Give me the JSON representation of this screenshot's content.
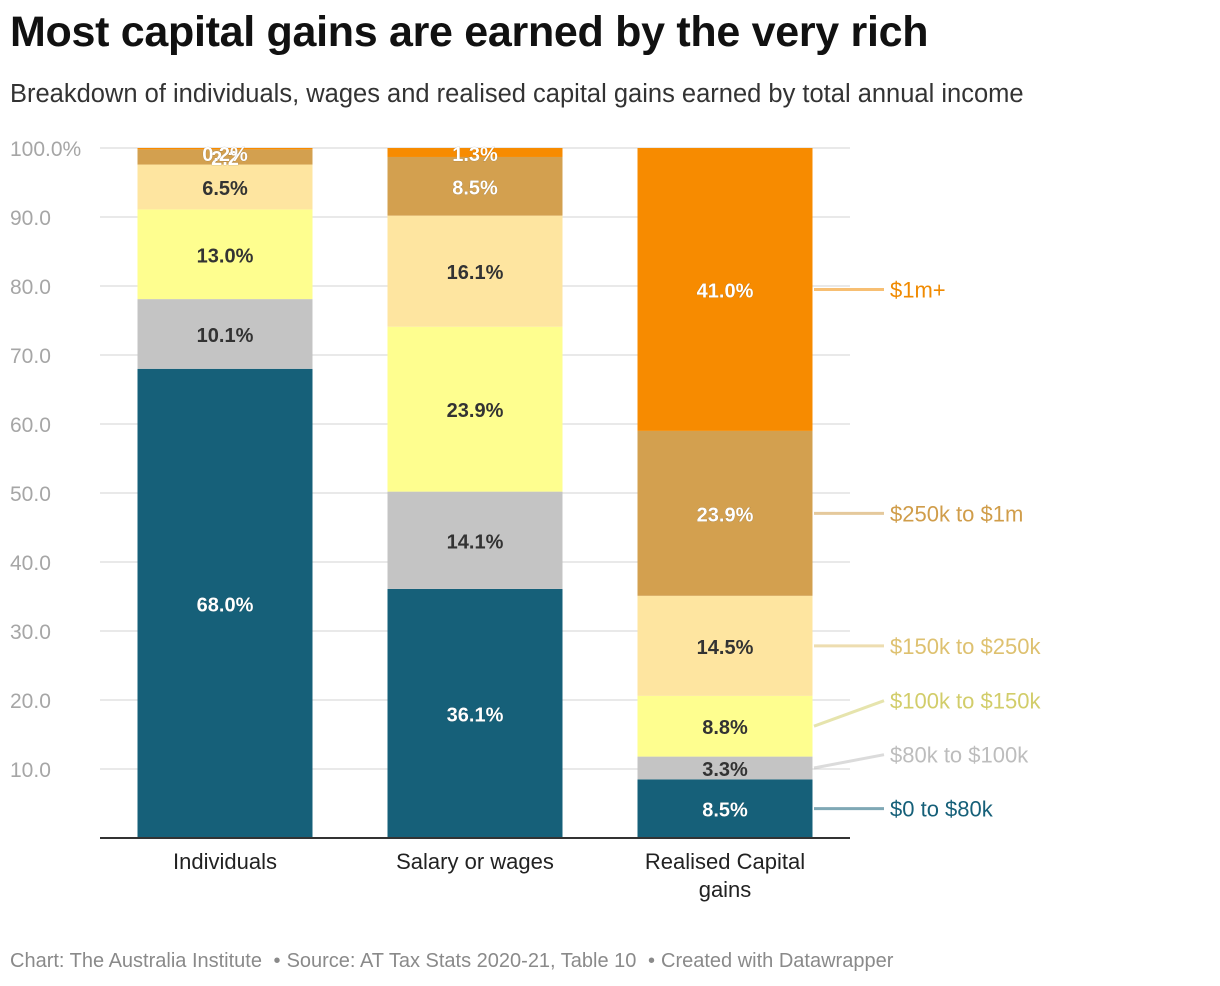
{
  "header": {
    "title": "Most capital gains are earned by the very rich",
    "subtitle": "Breakdown of individuals, wages and realised capital gains earned by total annual income"
  },
  "footer": {
    "chart_credit": "Chart: The Australia Institute",
    "source": "Source: AT Tax Stats 2020-21, Table 10",
    "created_with": "Created with Datawrapper",
    "separator": "•"
  },
  "chart_data": {
    "type": "bar",
    "stacked": true,
    "title": "Most capital gains are earned by the very rich",
    "subtitle": "Breakdown of individuals, wages and realised capital gains earned by total annual income",
    "xlabel": "",
    "ylabel": "",
    "ylim": [
      0,
      100
    ],
    "yticks": [
      10,
      20,
      30,
      40,
      50,
      60,
      70,
      80,
      90,
      100
    ],
    "ytick_labels": [
      "10.0",
      "20.0",
      "30.0",
      "40.0",
      "50.0",
      "60.0",
      "70.0",
      "80.0",
      "90.0",
      "100.0%"
    ],
    "grid": true,
    "legend_position": "right (direct labels beside last bar)",
    "categories": [
      {
        "label_lines": [
          "Individuals"
        ]
      },
      {
        "label_lines": [
          "Salary or wages"
        ]
      },
      {
        "label_lines": [
          "Realised Capital",
          "gains"
        ]
      }
    ],
    "series": [
      {
        "name": "$0 to $80k",
        "color": "#166079",
        "label_color": "#ffffff",
        "legend_color": "#166079",
        "values": [
          68.0,
          36.1,
          8.5
        ],
        "value_labels": [
          "68.0%",
          "36.1%",
          "8.5%"
        ]
      },
      {
        "name": "$80k to $100k",
        "color": "#c4c4c4",
        "label_color": "#333333",
        "legend_color": "#bdbdbd",
        "values": [
          10.1,
          14.1,
          3.3
        ],
        "value_labels": [
          "10.1%",
          "14.1%",
          "3.3%"
        ]
      },
      {
        "name": "$100k to $150k",
        "color": "#fefe8f",
        "label_color": "#333333",
        "legend_color": "#d2cd6a",
        "values": [
          13.0,
          23.9,
          8.8
        ],
        "value_labels": [
          "13.0%",
          "23.9%",
          "8.8%"
        ]
      },
      {
        "name": "$150k to $250k",
        "color": "#fee5a0",
        "label_color": "#333333",
        "legend_color": "#dec170",
        "values": [
          6.5,
          16.1,
          14.5
        ],
        "value_labels": [
          "6.5%",
          "16.1%",
          "14.5%"
        ]
      },
      {
        "name": "$250k to $1m",
        "color": "#d3a04f",
        "label_color": "#ffffff",
        "legend_color": "#d09d4a",
        "values": [
          2.2,
          8.5,
          23.9
        ],
        "value_labels": [
          "2.2",
          "8.5%",
          "23.9%"
        ]
      },
      {
        "name": "$1m+",
        "color": "#f78b00",
        "label_color": "#ffffff",
        "legend_color": "#f08a00",
        "values": [
          0.2,
          1.3,
          41.0
        ],
        "value_labels": [
          "0.2%",
          "1.3%",
          "41.0%"
        ]
      }
    ]
  }
}
